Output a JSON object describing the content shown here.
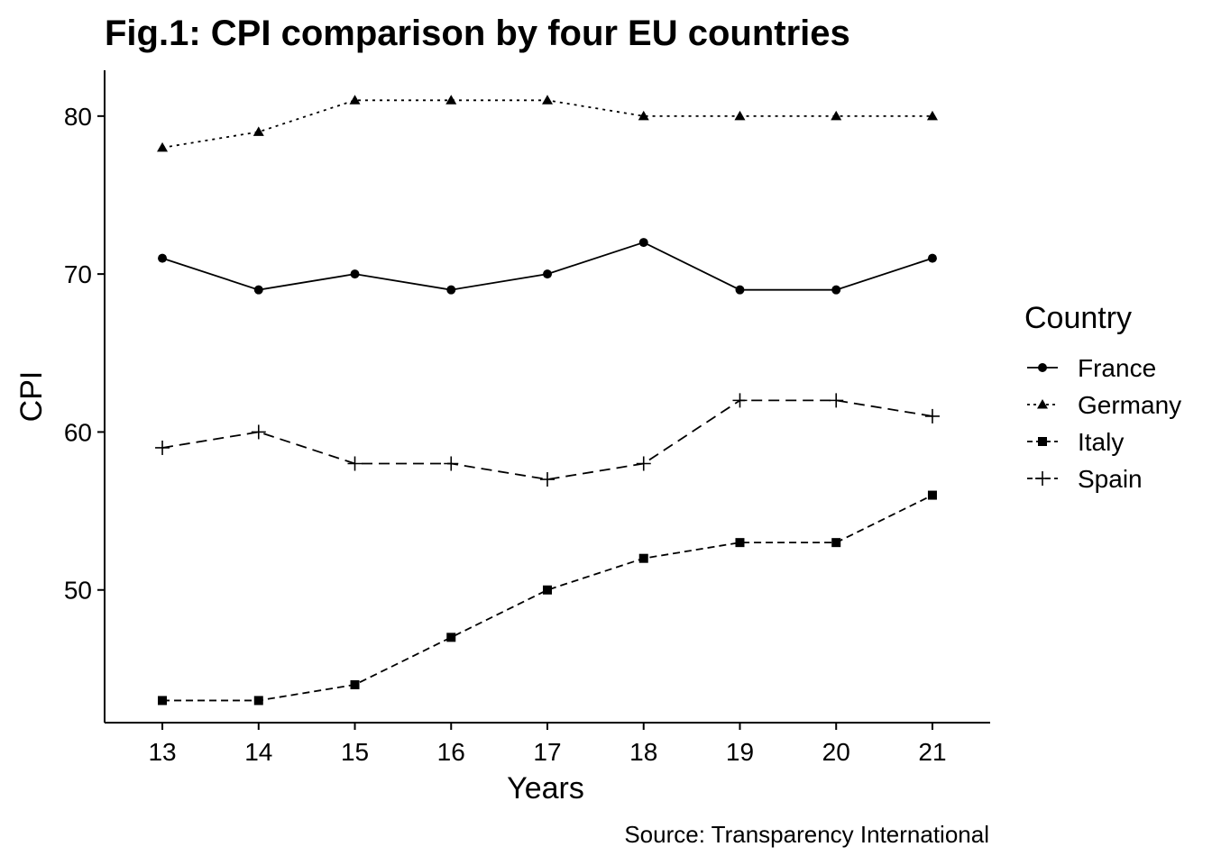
{
  "chart_data": {
    "type": "line",
    "title": "Fig.1: CPI comparison by four EU countries",
    "xlabel": "Years",
    "ylabel": "CPI",
    "caption": "Source: Transparency International",
    "x": [
      13,
      14,
      15,
      16,
      17,
      18,
      19,
      20,
      21
    ],
    "x_ticks": [
      "13",
      "14",
      "15",
      "16",
      "17",
      "18",
      "19",
      "20",
      "21"
    ],
    "y_ticks": [
      "50",
      "60",
      "70",
      "80"
    ],
    "ylim": [
      41.6,
      82.9
    ],
    "xlim": [
      12.4,
      21.6
    ],
    "grid": false,
    "legend": {
      "title": "Country",
      "placement": "right"
    },
    "series": [
      {
        "name": "France",
        "values": [
          71,
          69,
          70,
          69,
          70,
          72,
          69,
          69,
          71
        ],
        "marker": "circle",
        "line": "solid"
      },
      {
        "name": "Germany",
        "values": [
          78,
          79,
          81,
          81,
          81,
          80,
          80,
          80,
          80
        ],
        "marker": "triangle",
        "line": "dotted"
      },
      {
        "name": "Italy",
        "values": [
          43,
          43,
          44,
          47,
          50,
          52,
          53,
          53,
          56
        ],
        "marker": "square",
        "line": "dashed"
      },
      {
        "name": "Spain",
        "values": [
          59,
          60,
          58,
          58,
          57,
          58,
          62,
          62,
          61
        ],
        "marker": "plus",
        "line": "longdash"
      }
    ],
    "colors": {
      "line": "#000000",
      "background": "#ffffff"
    }
  }
}
